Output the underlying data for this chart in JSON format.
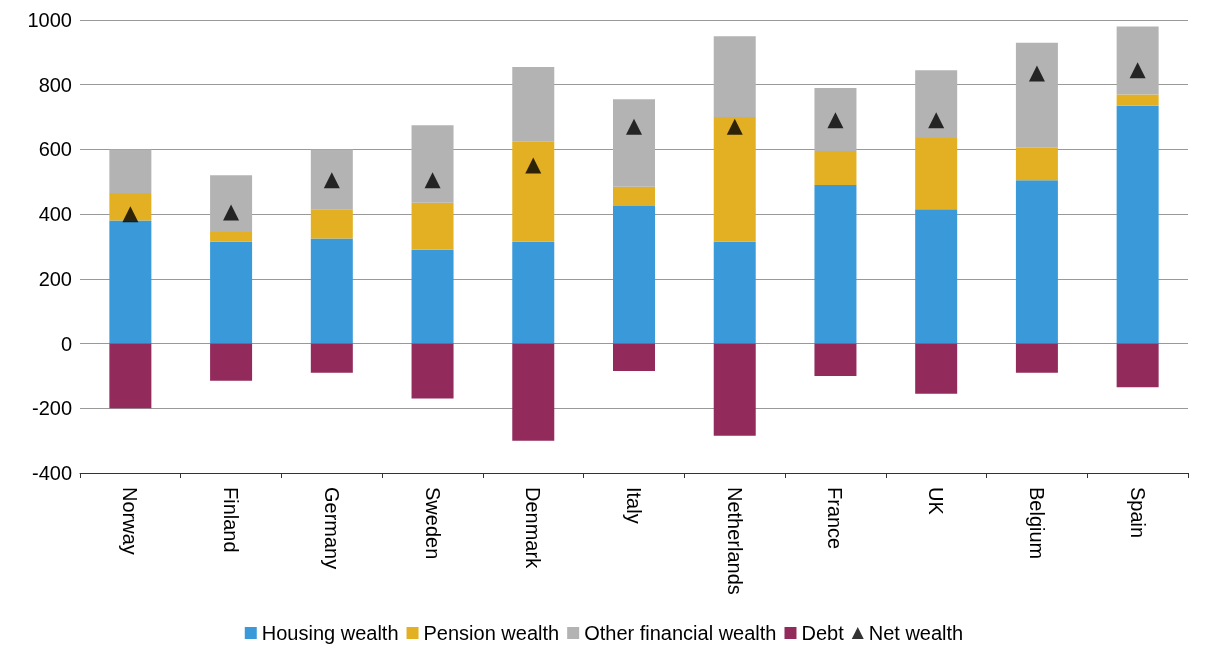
{
  "chart_data": {
    "type": "bar",
    "stacked": true,
    "categories": [
      "Norway",
      "Finland",
      "Germany",
      "Sweden",
      "Denmark",
      "Italy",
      "Netherlands",
      "France",
      "UK",
      "Belgium",
      "Spain"
    ],
    "series": [
      {
        "name": "Housing wealth",
        "color": "#3a9ad9",
        "values": [
          380,
          315,
          325,
          290,
          315,
          425,
          315,
          490,
          415,
          505,
          735
        ]
      },
      {
        "name": "Pension wealth",
        "color": "#e3b023",
        "values": [
          85,
          30,
          90,
          145,
          310,
          60,
          385,
          105,
          220,
          100,
          35
        ]
      },
      {
        "name": "Other financial wealth",
        "color": "#b3b3b3",
        "values": [
          135,
          175,
          185,
          240,
          230,
          270,
          250,
          195,
          210,
          325,
          210
        ]
      },
      {
        "name": "Debt",
        "color": "#922a5c",
        "values": [
          -200,
          -115,
          -90,
          -170,
          -300,
          -85,
          -285,
          -100,
          -155,
          -90,
          -135
        ]
      },
      {
        "name": "Net wealth",
        "type": "scatter",
        "marker": "triangle",
        "color": "#000000",
        "values": [
          400,
          405,
          505,
          505,
          550,
          670,
          670,
          690,
          690,
          835,
          845
        ]
      }
    ],
    "ylim": [
      -400,
      1000
    ],
    "yticks": [
      -400,
      -200,
      0,
      200,
      400,
      600,
      800,
      1000
    ],
    "grid": "y",
    "legend": "bottom"
  }
}
